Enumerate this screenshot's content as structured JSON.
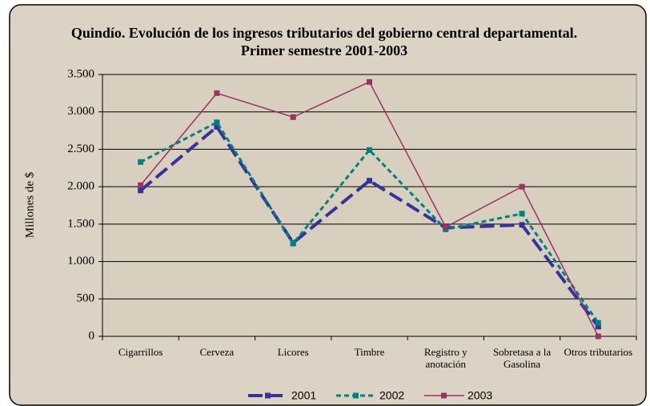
{
  "chart_data": {
    "type": "line",
    "title": "Quindío. Evolución de los ingresos tributarios del gobierno central departamental. Primer semestre 2001-2003",
    "y_label": "Millones de $",
    "categories": [
      "Cigarrillos",
      "Cerveza",
      "Licores",
      "Timbre",
      "Registro y anotación",
      "Sobretasa a la Gasolina",
      "Otros tributarios"
    ],
    "series": [
      {
        "name": "2001",
        "color": "#333399",
        "style": "dash",
        "values": [
          1950,
          2800,
          1250,
          2080,
          1450,
          1490,
          130
        ]
      },
      {
        "name": "2002",
        "color": "#008080",
        "style": "dot",
        "values": [
          2330,
          2860,
          1240,
          2490,
          1430,
          1640,
          180
        ]
      },
      {
        "name": "2003",
        "color": "#993366",
        "style": "solid",
        "values": [
          2020,
          3250,
          2930,
          3400,
          1460,
          2000,
          0
        ]
      }
    ],
    "ylim": [
      0,
      3500
    ],
    "yticks": [
      0,
      500,
      {
        "value": 1000,
        "label": "1.000"
      },
      {
        "value": 1500,
        "label": "1.500"
      },
      {
        "value": 2000,
        "label": "2.000"
      },
      {
        "value": 2500,
        "label": "2.500"
      },
      {
        "value": 3000,
        "label": "3.000"
      },
      {
        "value": 3500,
        "label": "3.500"
      }
    ],
    "grid": true,
    "legend": "bottom"
  }
}
